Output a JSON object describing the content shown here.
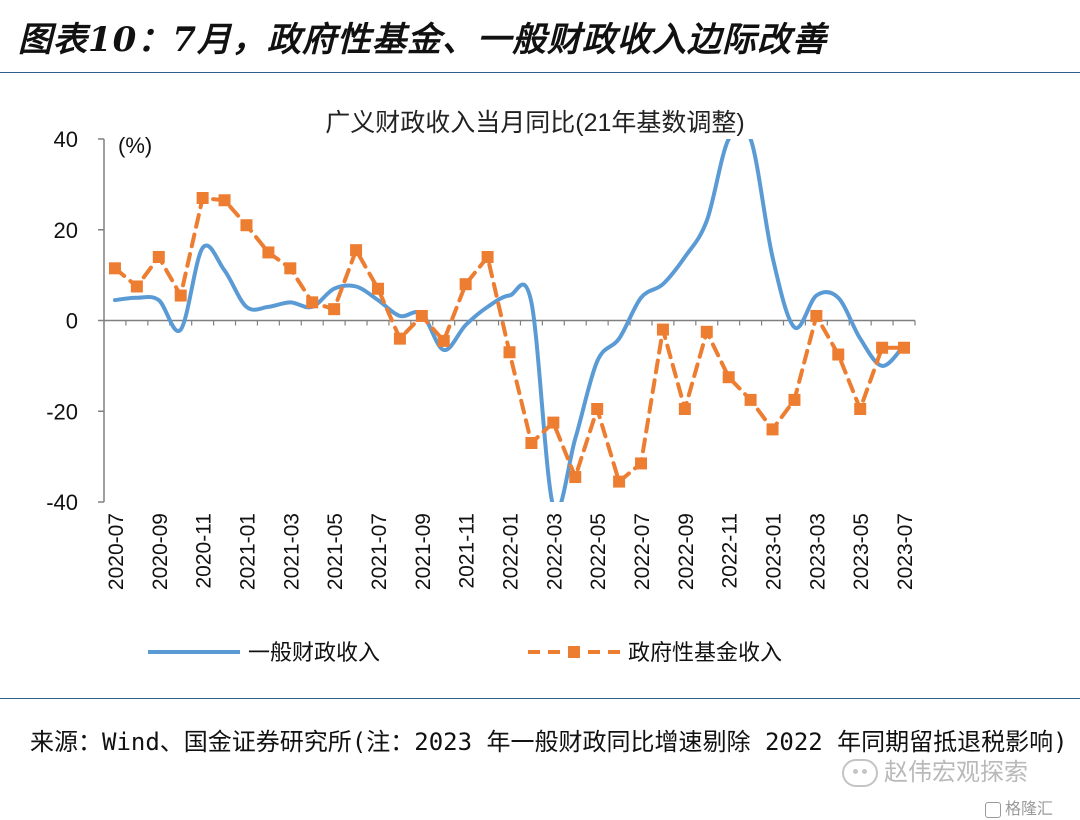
{
  "figure_title": "图表10：7月，政府性基金、一般财政收入边际改善",
  "source_note": "来源：Wind、国金证券研究所(注：2023 年一般财政同比增速剔除 2022 年同期留抵退税影响)",
  "watermark": "赵伟宏观探索",
  "watermark2": "格隆汇",
  "chart_data": {
    "type": "line",
    "title": "广义财政收入当月同比(21年基数调整)",
    "unit_label": "(%)",
    "ylim": [
      -40,
      40
    ],
    "y_ticks": [
      40,
      20,
      0,
      -20,
      -40
    ],
    "x": [
      "2020-07",
      "2020-08",
      "2020-09",
      "2020-10",
      "2020-11",
      "2020-12",
      "2021-01",
      "2021-02",
      "2021-03",
      "2021-04",
      "2021-05",
      "2021-06",
      "2021-07",
      "2021-08",
      "2021-09",
      "2021-10",
      "2021-11",
      "2021-12",
      "2022-01",
      "2022-02",
      "2022-03",
      "2022-04",
      "2022-05",
      "2022-06",
      "2022-07",
      "2022-08",
      "2022-09",
      "2022-10",
      "2022-11",
      "2022-12",
      "2023-01",
      "2023-02",
      "2023-03",
      "2023-04",
      "2023-05",
      "2023-06",
      "2023-07"
    ],
    "x_tick_labels": [
      "2020-07",
      "2020-09",
      "2020-11",
      "2021-01",
      "2021-03",
      "2021-05",
      "2021-07",
      "2021-09",
      "2021-11",
      "2022-01",
      "2022-03",
      "2022-05",
      "2022-07",
      "2022-09",
      "2022-11",
      "2023-01",
      "2023-03",
      "2023-05",
      "2023-07"
    ],
    "legend_position": "bottom",
    "grid": false,
    "series": [
      {
        "name": "一般财政收入",
        "color": "#5b9bd5",
        "style": "solid",
        "values": [
          4.5,
          5.0,
          4.5,
          -2.0,
          16.0,
          11.0,
          3.0,
          3.0,
          4.0,
          3.0,
          7.0,
          7.5,
          4.5,
          1.0,
          1.5,
          -6.5,
          -1.0,
          3.0,
          5.5,
          4.0,
          -41.0,
          -26.0,
          -9.0,
          -4.0,
          5.0,
          8.0,
          14.0,
          22.0,
          40.0,
          40.0,
          14.0,
          -1.5,
          5.5,
          5.0,
          -4.0,
          -10.0,
          -5.5
        ]
      },
      {
        "name": "政府性基金收入",
        "color": "#ed7d31",
        "style": "dashed",
        "marker": "square",
        "values": [
          11.5,
          7.5,
          14.0,
          5.5,
          27.0,
          26.5,
          21.0,
          15.0,
          11.5,
          4.0,
          2.5,
          15.5,
          7.0,
          -4.0,
          1.0,
          -4.5,
          8.0,
          14.0,
          -7.0,
          -27.0,
          -22.5,
          -34.5,
          -19.5,
          -35.5,
          -31.5,
          -2.0,
          -19.5,
          -2.5,
          -12.5,
          -17.5,
          -24.0,
          -17.5,
          1.0,
          -7.5,
          -19.5,
          -6.0,
          -6.0
        ]
      }
    ]
  }
}
